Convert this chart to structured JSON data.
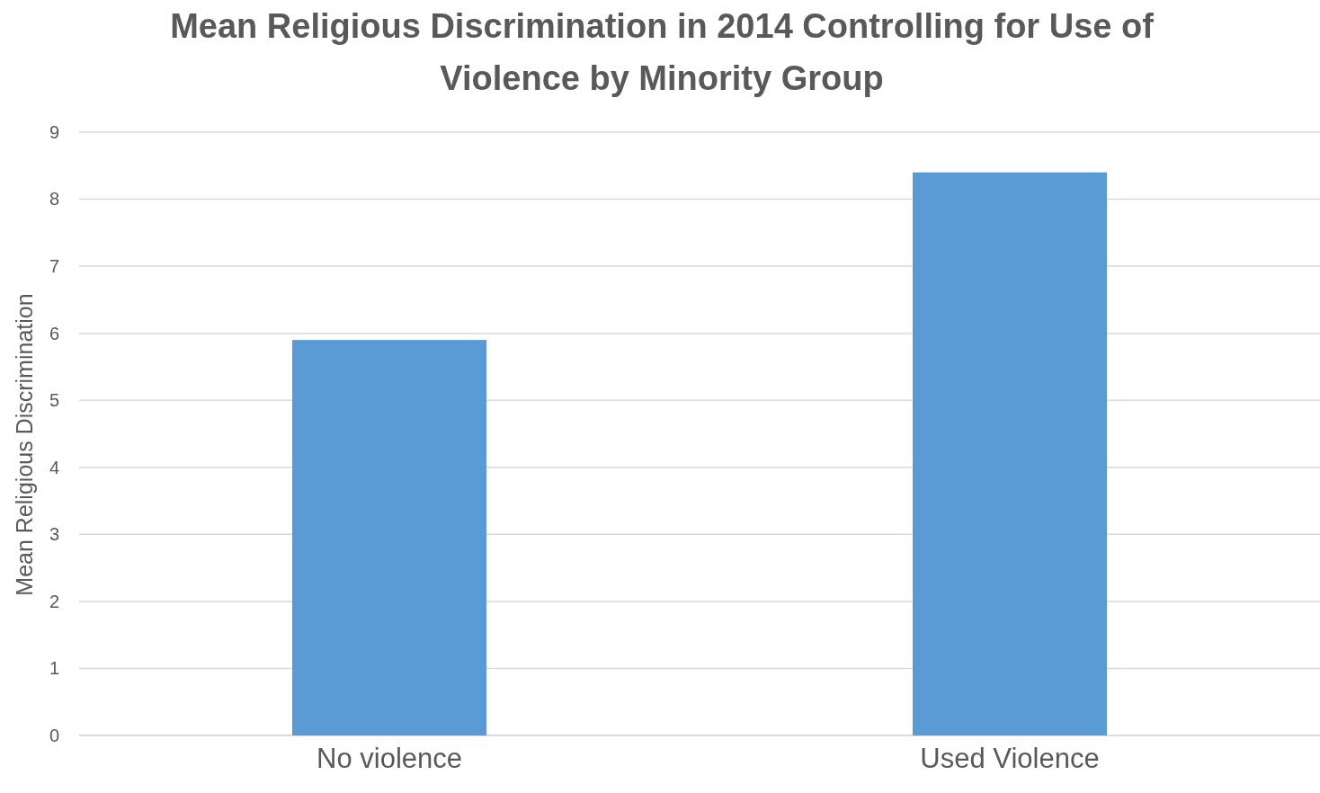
{
  "chart_data": {
    "type": "bar",
    "title": "Mean Religious Discrimination in 2014 Controlling for Use of Violence by Minority Group",
    "ylabel": "Mean Religious Discrimination",
    "categories": [
      "No violence",
      "Used Violence"
    ],
    "values": [
      5.9,
      8.4
    ],
    "color": "#5b9bd5",
    "ylim": [
      0,
      9
    ],
    "yticks": [
      0,
      1,
      2,
      3,
      4,
      5,
      6,
      7,
      8,
      9
    ],
    "grid": "y"
  }
}
